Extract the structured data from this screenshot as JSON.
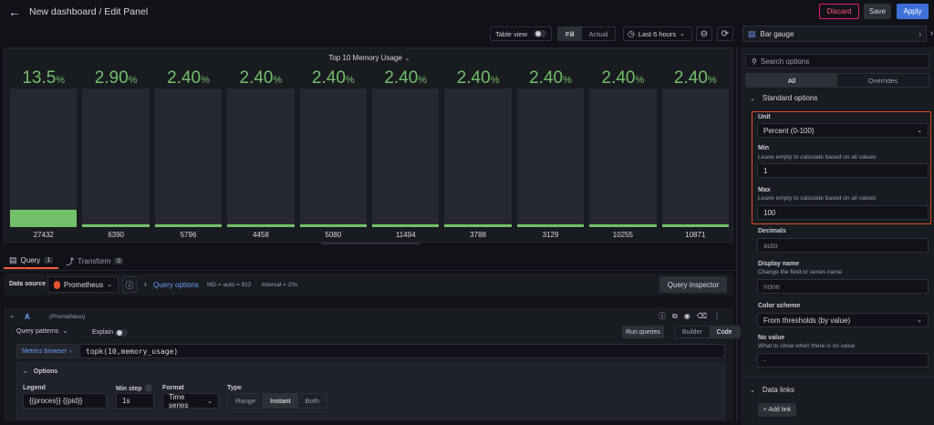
{
  "header": {
    "title": "New dashboard / Edit Panel",
    "discard": "Discard",
    "save": "Save",
    "apply": "Apply"
  },
  "toolbar": {
    "table_view": "Table view",
    "fill": "Fill",
    "actual": "Actual",
    "time_range": "Last 6 hours"
  },
  "panel": {
    "title": "Top 10 Memory Usage"
  },
  "chart_data": {
    "type": "bar",
    "title": "Top 10 Memory Usage",
    "categories": [
      "27432",
      "6390",
      "5796",
      "4458",
      "5080",
      "11494",
      "3788",
      "3129",
      "10255",
      "10871"
    ],
    "value_labels": [
      "13.5",
      "2.90",
      "2.40",
      "2.40",
      "2.40",
      "2.40",
      "2.40",
      "2.40",
      "2.40",
      "2.40"
    ],
    "values": [
      13.5,
      2.9,
      2.4,
      2.4,
      2.4,
      2.4,
      2.4,
      2.4,
      2.4,
      2.4
    ],
    "unit": "%",
    "ylim": [
      1,
      100
    ],
    "color": "#73bf69"
  },
  "tabs": {
    "query": "Query",
    "query_count": "1",
    "transform": "Transform",
    "transform_count": "0"
  },
  "datasource": {
    "label": "Data source",
    "name": "Prometheus",
    "query_options": "Query options",
    "md": "MD = auto = 912",
    "interval": "Interval = 20s",
    "inspector": "Query inspector"
  },
  "query": {
    "ref": "A",
    "ds": "(Prometheus)",
    "patterns": "Query patterns",
    "explain": "Explain",
    "run": "Run queries",
    "builder": "Builder",
    "code": "Code",
    "metrics_browser": "Metrics browser",
    "expr": "topk(10,memory_usage)",
    "options_title": "Options",
    "legend_label": "Legend",
    "legend_value": "{{proces}} {{pid}}",
    "minstep_label": "Min step",
    "minstep_value": "1s",
    "format_label": "Format",
    "format_value": "Time series",
    "type_label": "Type",
    "type_range": "Range",
    "type_instant": "Instant",
    "type_both": "Both"
  },
  "sidebar": {
    "viz": "Bar gauge",
    "search_placeholder": "Search options",
    "tab_all": "All",
    "tab_overrides": "Overrides",
    "section_standard": "Standard options",
    "unit_label": "Unit",
    "unit_value": "Percent (0-100)",
    "min_label": "Min",
    "min_desc": "Leave empty to calculate based on all values",
    "min_value": "1",
    "max_label": "Max",
    "max_desc": "Leave empty to calculate based on all values",
    "max_value": "100",
    "decimals_label": "Decimals",
    "decimals_placeholder": "auto",
    "display_name_label": "Display name",
    "display_name_desc": "Change the field or series name",
    "display_name_placeholder": "none",
    "color_scheme_label": "Color scheme",
    "color_scheme_value": "From thresholds (by value)",
    "no_value_label": "No value",
    "no_value_desc": "What to show when there is no value",
    "no_value_placeholder": "-",
    "section_data_links": "Data links",
    "add_link": "+ Add link"
  }
}
